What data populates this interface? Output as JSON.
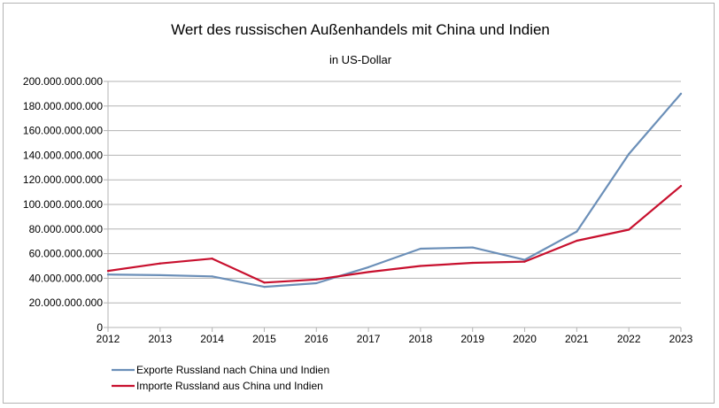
{
  "chart_data": {
    "type": "line",
    "title": "Wert des russischen Außenhandels mit China und Indien",
    "subtitle": "in US-Dollar",
    "xlabel": "",
    "ylabel": "",
    "x": [
      "2012",
      "2013",
      "2014",
      "2015",
      "2016",
      "2017",
      "2018",
      "2019",
      "2020",
      "2021",
      "2022",
      "2023"
    ],
    "ylim": [
      0,
      200000000000
    ],
    "ytick_step": 20000000000,
    "y_tick_labels": [
      "0",
      "20.000.000.000",
      "40.000.000.000",
      "60.000.000.000",
      "80.000.000.000",
      "100.000.000.000",
      "120.000.000.000",
      "140.000.000.000",
      "160.000.000.000",
      "180.000.000.000",
      "200.000.000.000"
    ],
    "grid": "horizontal",
    "legend_position": "bottom-left",
    "series": [
      {
        "name": "Exporte Russland nach China und Indien",
        "color": "#6b8fb8",
        "values": [
          43000000000,
          42500000000,
          41500000000,
          33000000000,
          36000000000,
          49000000000,
          64000000000,
          65000000000,
          55000000000,
          78000000000,
          141000000000,
          190000000000
        ]
      },
      {
        "name": "Importe Russland aus China und Indien",
        "color": "#c8102e",
        "values": [
          46000000000,
          52000000000,
          56000000000,
          36500000000,
          39000000000,
          45000000000,
          50000000000,
          52500000000,
          53500000000,
          70500000000,
          79500000000,
          115000000000
        ]
      }
    ]
  }
}
